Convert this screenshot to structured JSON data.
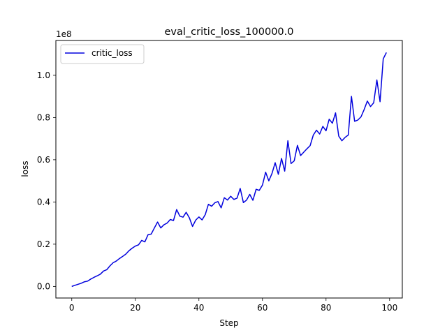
{
  "chart_data": {
    "type": "line",
    "title": "eval_critic_loss_100000.0",
    "xlabel": "Step",
    "ylabel": "loss",
    "y_offset_label": "1e8",
    "xlim": [
      -5,
      104
    ],
    "ylim": [
      -0.055,
      1.165
    ],
    "x_ticks": [
      0,
      20,
      40,
      60,
      80,
      100
    ],
    "x_tick_labels": [
      "0",
      "20",
      "40",
      "60",
      "80",
      "100"
    ],
    "y_ticks": [
      0.0,
      0.2,
      0.4,
      0.6,
      0.8,
      1.0
    ],
    "y_tick_labels": [
      "0.0",
      "0.2",
      "0.4",
      "0.6",
      "0.8",
      "1.0"
    ],
    "grid": false,
    "legend_position": "upper-left",
    "series": [
      {
        "name": "critic_loss",
        "color": "#0000dd",
        "x": [
          0,
          1,
          2,
          3,
          4,
          5,
          6,
          7,
          8,
          9,
          10,
          11,
          12,
          13,
          14,
          15,
          16,
          17,
          18,
          19,
          20,
          21,
          22,
          23,
          24,
          25,
          26,
          27,
          28,
          29,
          30,
          31,
          32,
          33,
          34,
          35,
          36,
          37,
          38,
          39,
          40,
          41,
          42,
          43,
          44,
          45,
          46,
          47,
          48,
          49,
          50,
          51,
          52,
          53,
          54,
          55,
          56,
          57,
          58,
          59,
          60,
          61,
          62,
          63,
          64,
          65,
          66,
          67,
          68,
          69,
          70,
          71,
          72,
          73,
          74,
          75,
          76,
          77,
          78,
          79,
          80,
          81,
          82,
          83,
          84,
          85,
          86,
          87,
          88,
          89,
          90,
          91,
          92,
          93,
          94,
          95,
          96,
          97,
          98,
          99
        ],
        "values": [
          0.0,
          0.005,
          0.01,
          0.015,
          0.022,
          0.025,
          0.035,
          0.043,
          0.05,
          0.058,
          0.073,
          0.079,
          0.097,
          0.112,
          0.12,
          0.132,
          0.142,
          0.153,
          0.169,
          0.181,
          0.191,
          0.197,
          0.218,
          0.211,
          0.245,
          0.248,
          0.277,
          0.305,
          0.277,
          0.292,
          0.3,
          0.317,
          0.312,
          0.364,
          0.333,
          0.328,
          0.351,
          0.325,
          0.284,
          0.314,
          0.329,
          0.315,
          0.34,
          0.389,
          0.38,
          0.396,
          0.402,
          0.372,
          0.42,
          0.409,
          0.427,
          0.412,
          0.418,
          0.464,
          0.397,
          0.409,
          0.436,
          0.408,
          0.46,
          0.455,
          0.48,
          0.541,
          0.5,
          0.535,
          0.586,
          0.531,
          0.606,
          0.546,
          0.69,
          0.582,
          0.595,
          0.668,
          0.62,
          0.636,
          0.652,
          0.667,
          0.717,
          0.74,
          0.722,
          0.758,
          0.737,
          0.792,
          0.773,
          0.822,
          0.712,
          0.69,
          0.706,
          0.717,
          0.9,
          0.782,
          0.788,
          0.803,
          0.838,
          0.878,
          0.852,
          0.87,
          0.978,
          0.875,
          1.078,
          1.108
        ]
      }
    ]
  }
}
